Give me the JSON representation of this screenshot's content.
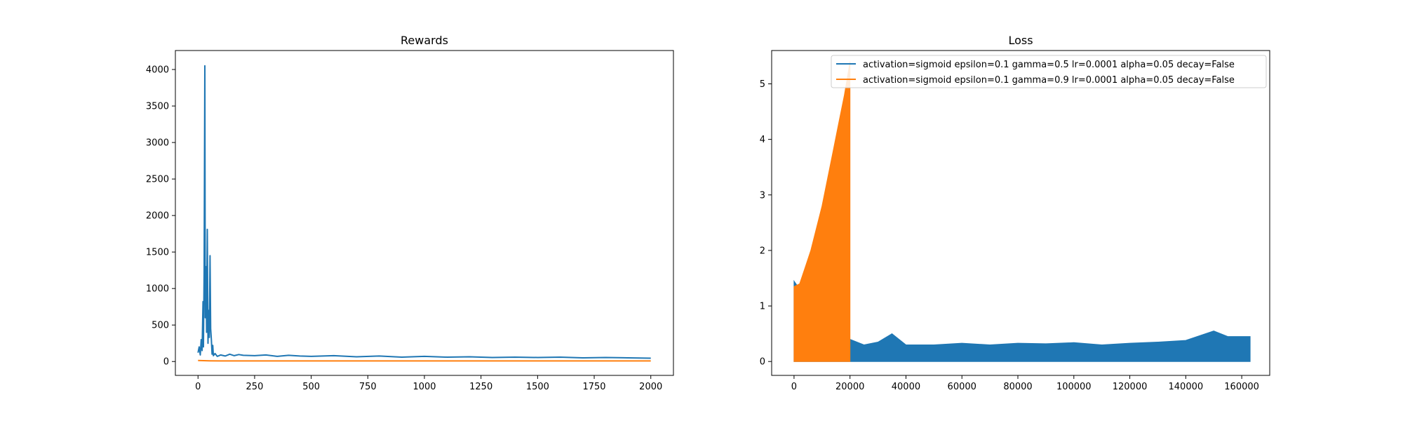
{
  "colors": {
    "blue": "#1f77b4",
    "orange": "#ff7f0e"
  },
  "chart_data": [
    {
      "type": "line",
      "title": "Rewards",
      "xlabel": "",
      "ylabel": "",
      "xlim": [
        -100,
        2100
      ],
      "ylim": [
        -190,
        4260
      ],
      "xticks": [
        0,
        250,
        500,
        750,
        1000,
        1250,
        1500,
        1750,
        2000
      ],
      "yticks": [
        0,
        500,
        1000,
        1500,
        2000,
        2500,
        3000,
        3500,
        4000
      ],
      "grid": false,
      "series": [
        {
          "color": "#1f77b4",
          "points": [
            [
              0,
              120
            ],
            [
              5,
              200
            ],
            [
              10,
              90
            ],
            [
              14,
              300
            ],
            [
              18,
              150
            ],
            [
              22,
              820
            ],
            [
              24,
              200
            ],
            [
              27,
              1250
            ],
            [
              30,
              4050
            ],
            [
              32,
              600
            ],
            [
              35,
              1300
            ],
            [
              38,
              400
            ],
            [
              41,
              1810
            ],
            [
              44,
              250
            ],
            [
              47,
              700
            ],
            [
              50,
              330
            ],
            [
              53,
              1450
            ],
            [
              56,
              450
            ],
            [
              59,
              300
            ],
            [
              62,
              100
            ],
            [
              65,
              220
            ],
            [
              68,
              80
            ],
            [
              75,
              110
            ],
            [
              85,
              70
            ],
            [
              100,
              90
            ],
            [
              120,
              75
            ],
            [
              140,
              100
            ],
            [
              160,
              80
            ],
            [
              180,
              95
            ],
            [
              200,
              85
            ],
            [
              250,
              80
            ],
            [
              300,
              90
            ],
            [
              350,
              70
            ],
            [
              400,
              85
            ],
            [
              450,
              75
            ],
            [
              500,
              70
            ],
            [
              600,
              80
            ],
            [
              700,
              65
            ],
            [
              800,
              75
            ],
            [
              900,
              60
            ],
            [
              1000,
              70
            ],
            [
              1100,
              60
            ],
            [
              1200,
              65
            ],
            [
              1300,
              55
            ],
            [
              1400,
              60
            ],
            [
              1500,
              55
            ],
            [
              1600,
              60
            ],
            [
              1700,
              50
            ],
            [
              1800,
              55
            ],
            [
              1900,
              50
            ],
            [
              2000,
              45
            ]
          ]
        },
        {
          "color": "#ff7f0e",
          "points": [
            [
              0,
              15
            ],
            [
              50,
              10
            ],
            [
              100,
              8
            ],
            [
              500,
              8
            ],
            [
              1000,
              8
            ],
            [
              1500,
              8
            ],
            [
              2000,
              8
            ]
          ]
        }
      ]
    },
    {
      "type": "line",
      "title": "Loss",
      "xlabel": "",
      "ylabel": "",
      "xlim": [
        -8000,
        170000
      ],
      "ylim": [
        -0.25,
        5.6
      ],
      "xticks": [
        0,
        20000,
        40000,
        60000,
        80000,
        100000,
        120000,
        140000,
        160000
      ],
      "yticks": [
        0,
        1,
        2,
        3,
        4,
        5
      ],
      "grid": false,
      "legend": {
        "placement": "upper right",
        "entries": [
          "activation=sigmoid epsilon=0.1 gamma=0.5 lr=0.0001 alpha=0.05 decay=False",
          "activation=sigmoid epsilon=0.1 gamma=0.9 lr=0.0001 alpha=0.05 decay=False"
        ]
      },
      "series": [
        {
          "name": "activation=sigmoid epsilon=0.1 gamma=0.5 lr=0.0001 alpha=0.05 decay=False",
          "color": "#1f77b4",
          "baseline": 0,
          "envelope": [
            [
              0,
              1.45
            ],
            [
              2000,
              1.3
            ],
            [
              5000,
              1.1
            ],
            [
              10000,
              0.8
            ],
            [
              15000,
              0.6
            ],
            [
              20000,
              0.4
            ],
            [
              25000,
              0.3
            ],
            [
              30000,
              0.35
            ],
            [
              35000,
              0.5
            ],
            [
              40000,
              0.3
            ],
            [
              45000,
              0.3
            ],
            [
              50000,
              0.3
            ],
            [
              60000,
              0.33
            ],
            [
              70000,
              0.3
            ],
            [
              80000,
              0.33
            ],
            [
              90000,
              0.32
            ],
            [
              100000,
              0.34
            ],
            [
              110000,
              0.3
            ],
            [
              120000,
              0.33
            ],
            [
              130000,
              0.35
            ],
            [
              140000,
              0.38
            ],
            [
              150000,
              0.55
            ],
            [
              155000,
              0.45
            ],
            [
              160000,
              0.45
            ],
            [
              163000,
              0.45
            ]
          ]
        },
        {
          "name": "activation=sigmoid epsilon=0.1 gamma=0.9 lr=0.0001 alpha=0.05 decay=False",
          "color": "#ff7f0e",
          "baseline": 0,
          "envelope": [
            [
              0,
              1.35
            ],
            [
              2000,
              1.4
            ],
            [
              4000,
              1.7
            ],
            [
              6000,
              2.0
            ],
            [
              8000,
              2.4
            ],
            [
              10000,
              2.8
            ],
            [
              12000,
              3.3
            ],
            [
              14000,
              3.8
            ],
            [
              16000,
              4.3
            ],
            [
              18000,
              4.8
            ],
            [
              20000,
              5.4
            ]
          ]
        }
      ]
    }
  ]
}
